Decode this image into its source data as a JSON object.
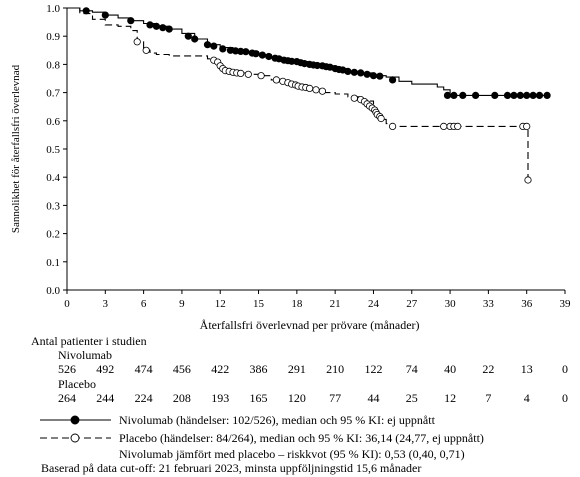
{
  "chart_data": {
    "type": "line",
    "ylabel": "Sannolikhet för återfallsfri överlevnad",
    "xlabel": "Återfallsfri överlevnad per prövare (månader)",
    "xlim": [
      0,
      39
    ],
    "ylim": [
      0.0,
      1.0
    ],
    "xticks": [
      "0",
      "3",
      "6",
      "9",
      "12",
      "15",
      "18",
      "21",
      "24",
      "27",
      "30",
      "33",
      "36",
      "39"
    ],
    "yticks": [
      "0.0",
      "0.1",
      "0.2",
      "0.3",
      "0.4",
      "0.5",
      "0.6",
      "0.7",
      "0.8",
      "0.9",
      "1.0"
    ],
    "grid": false,
    "series": [
      {
        "name": "Nivolumab",
        "style": "solid",
        "marker": "filled-circle",
        "steps": [
          [
            0,
            1.0
          ],
          [
            1,
            0.99
          ],
          [
            2,
            0.985
          ],
          [
            3,
            0.975
          ],
          [
            4,
            0.965
          ],
          [
            5,
            0.955
          ],
          [
            6,
            0.945
          ],
          [
            7,
            0.935
          ],
          [
            8,
            0.925
          ],
          [
            9,
            0.91
          ],
          [
            10,
            0.89
          ],
          [
            11,
            0.87
          ],
          [
            12,
            0.86
          ],
          [
            13,
            0.85
          ],
          [
            14,
            0.845
          ],
          [
            15,
            0.835
          ],
          [
            16,
            0.825
          ],
          [
            17,
            0.815
          ],
          [
            18,
            0.81
          ],
          [
            19,
            0.8
          ],
          [
            20,
            0.795
          ],
          [
            21,
            0.785
          ],
          [
            22,
            0.775
          ],
          [
            23,
            0.77
          ],
          [
            24,
            0.76
          ],
          [
            25,
            0.755
          ],
          [
            26,
            0.74
          ],
          [
            27,
            0.73
          ],
          [
            28,
            0.73
          ],
          [
            29,
            0.72
          ],
          [
            29.5,
            0.71
          ],
          [
            30,
            0.69
          ],
          [
            37.5,
            0.69
          ]
        ],
        "censored": [
          [
            1.5,
            0.99
          ],
          [
            3,
            0.975
          ],
          [
            5,
            0.955
          ],
          [
            6.5,
            0.94
          ],
          [
            7,
            0.935
          ],
          [
            7.5,
            0.93
          ],
          [
            8,
            0.925
          ],
          [
            9.5,
            0.9
          ],
          [
            10,
            0.89
          ],
          [
            11,
            0.87
          ],
          [
            11.5,
            0.865
          ],
          [
            12.2,
            0.855
          ],
          [
            12.8,
            0.85
          ],
          [
            13.2,
            0.848
          ],
          [
            13.6,
            0.846
          ],
          [
            14,
            0.845
          ],
          [
            14.5,
            0.84
          ],
          [
            14.8,
            0.838
          ],
          [
            15.3,
            0.833
          ],
          [
            15.8,
            0.828
          ],
          [
            16.3,
            0.822
          ],
          [
            16.6,
            0.82
          ],
          [
            17,
            0.815
          ],
          [
            17.3,
            0.813
          ],
          [
            17.6,
            0.811
          ],
          [
            18,
            0.81
          ],
          [
            18.3,
            0.806
          ],
          [
            18.6,
            0.803
          ],
          [
            19,
            0.8
          ],
          [
            19.3,
            0.798
          ],
          [
            19.6,
            0.796
          ],
          [
            20,
            0.795
          ],
          [
            20.3,
            0.792
          ],
          [
            20.6,
            0.79
          ],
          [
            21,
            0.785
          ],
          [
            21.3,
            0.782
          ],
          [
            21.6,
            0.78
          ],
          [
            22,
            0.775
          ],
          [
            22.5,
            0.772
          ],
          [
            23,
            0.77
          ],
          [
            23.5,
            0.765
          ],
          [
            24,
            0.76
          ],
          [
            24.5,
            0.758
          ],
          [
            25.5,
            0.745
          ],
          [
            29.8,
            0.69
          ],
          [
            30.3,
            0.69
          ],
          [
            31,
            0.69
          ],
          [
            32,
            0.69
          ],
          [
            33.5,
            0.69
          ],
          [
            34.5,
            0.69
          ],
          [
            35,
            0.69
          ],
          [
            35.5,
            0.69
          ],
          [
            36,
            0.69
          ],
          [
            36.5,
            0.69
          ],
          [
            37,
            0.69
          ],
          [
            37.6,
            0.69
          ]
        ]
      },
      {
        "name": "Placebo",
        "style": "dashed",
        "marker": "open-circle",
        "steps": [
          [
            0,
            1.0
          ],
          [
            1,
            0.98
          ],
          [
            2,
            0.96
          ],
          [
            3,
            0.94
          ],
          [
            4,
            0.935
          ],
          [
            5,
            0.92
          ],
          [
            5.5,
            0.88
          ],
          [
            6,
            0.85
          ],
          [
            6.5,
            0.84
          ],
          [
            7,
            0.835
          ],
          [
            8,
            0.83
          ],
          [
            10,
            0.83
          ],
          [
            11,
            0.82
          ],
          [
            11.5,
            0.81
          ],
          [
            12,
            0.79
          ],
          [
            12.5,
            0.775
          ],
          [
            13,
            0.77
          ],
          [
            14,
            0.765
          ],
          [
            15,
            0.76
          ],
          [
            16,
            0.745
          ],
          [
            17,
            0.735
          ],
          [
            17.5,
            0.725
          ],
          [
            18,
            0.72
          ],
          [
            19,
            0.71
          ],
          [
            20,
            0.7
          ],
          [
            21,
            0.695
          ],
          [
            22,
            0.685
          ],
          [
            23,
            0.67
          ],
          [
            24,
            0.63
          ],
          [
            24.5,
            0.605
          ],
          [
            25,
            0.59
          ],
          [
            25.5,
            0.58
          ],
          [
            36,
            0.58
          ],
          [
            36.1,
            0.39
          ]
        ],
        "censored": [
          [
            5.5,
            0.88
          ],
          [
            6.2,
            0.85
          ],
          [
            11.5,
            0.815
          ],
          [
            11.8,
            0.808
          ],
          [
            12,
            0.795
          ],
          [
            12.2,
            0.785
          ],
          [
            12.4,
            0.778
          ],
          [
            12.7,
            0.775
          ],
          [
            13,
            0.772
          ],
          [
            13.3,
            0.77
          ],
          [
            13.6,
            0.768
          ],
          [
            14.2,
            0.765
          ],
          [
            15.2,
            0.76
          ],
          [
            16.4,
            0.745
          ],
          [
            16.9,
            0.74
          ],
          [
            17.3,
            0.735
          ],
          [
            17.6,
            0.73
          ],
          [
            17.9,
            0.727
          ],
          [
            18.1,
            0.723
          ],
          [
            18.4,
            0.72
          ],
          [
            18.7,
            0.718
          ],
          [
            19,
            0.715
          ],
          [
            19.5,
            0.71
          ],
          [
            20,
            0.705
          ],
          [
            22.5,
            0.68
          ],
          [
            23,
            0.675
          ],
          [
            23.3,
            0.668
          ],
          [
            23.5,
            0.66
          ],
          [
            23.7,
            0.652
          ],
          [
            23.9,
            0.645
          ],
          [
            24.1,
            0.638
          ],
          [
            24.2,
            0.63
          ],
          [
            24.3,
            0.622
          ],
          [
            24.5,
            0.615
          ],
          [
            24.6,
            0.608
          ],
          [
            25.5,
            0.58
          ],
          [
            29.5,
            0.58
          ],
          [
            30,
            0.58
          ],
          [
            30.3,
            0.58
          ],
          [
            30.6,
            0.58
          ],
          [
            35.7,
            0.58
          ],
          [
            36,
            0.58
          ],
          [
            36.1,
            0.39
          ]
        ]
      }
    ],
    "at_risk": {
      "title": "Antal patienter i studien",
      "groups": [
        {
          "name": "Nivolumab",
          "counts": [
            "526",
            "492",
            "474",
            "456",
            "422",
            "386",
            "291",
            "210",
            "122",
            "74",
            "40",
            "22",
            "13",
            "0"
          ]
        },
        {
          "name": "Placebo",
          "counts": [
            "264",
            "244",
            "224",
            "208",
            "193",
            "165",
            "120",
            "77",
            "44",
            "25",
            "12",
            "7",
            "4",
            "0"
          ]
        }
      ]
    },
    "legend": {
      "entries": [
        "Nivolumab (händelser: 102/526), median och 95 % KI: ej uppnått",
        "Placebo (händelser: 84/264), median och 95 % KI: 36,14 (24,77, ej uppnått)"
      ],
      "hazard_text": "Nivolumab jämfört med placebo – riskkvot (95 % KI): 0,53 (0,40, 0,71)",
      "footnote": "Baserad på data cut-off: 21 februari 2023, minsta uppföljningstid 15,6 månader",
      "placement": "bottom"
    }
  }
}
